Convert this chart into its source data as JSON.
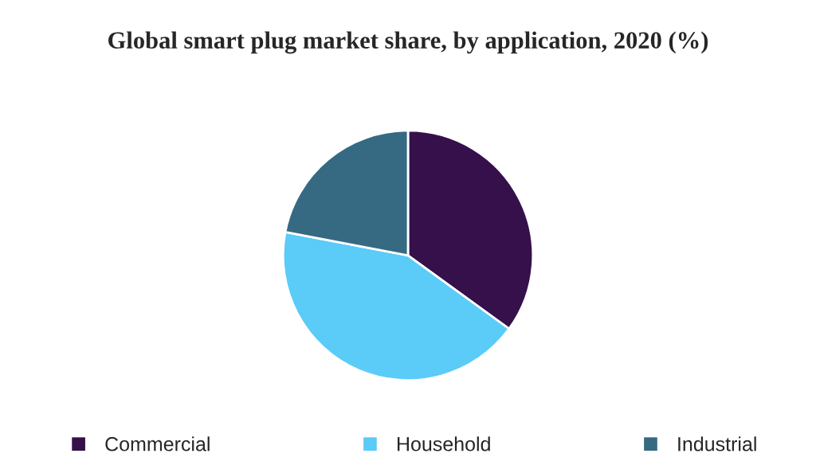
{
  "chart_data": {
    "type": "pie",
    "title": "Global smart plug market share, by application, 2020 (%)",
    "categories": [
      "Commercial",
      "Household",
      "Industrial"
    ],
    "values": [
      35,
      43,
      22
    ],
    "colors": [
      "#35104a",
      "#5bcbf7",
      "#366a82"
    ],
    "legend": "bottom"
  }
}
